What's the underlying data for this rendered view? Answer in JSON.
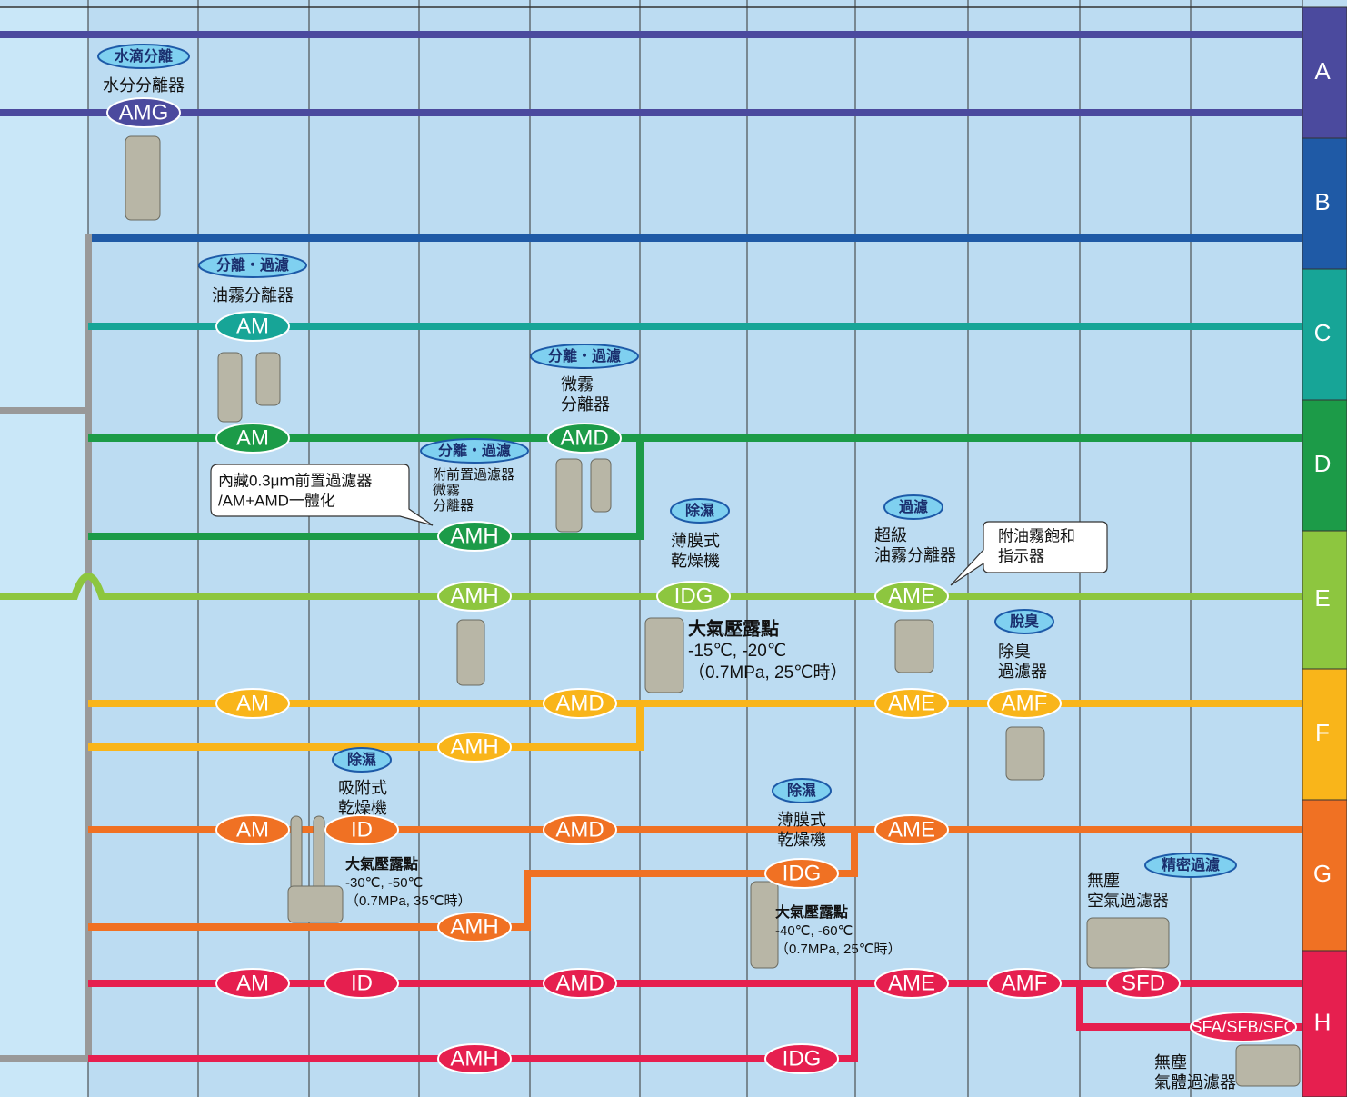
{
  "grades": [
    {
      "label": "A",
      "color": "#4b4a9e"
    },
    {
      "label": "B",
      "color": "#1f5aa6"
    },
    {
      "label": "C",
      "color": "#17a597"
    },
    {
      "label": "D",
      "color": "#1c9b48"
    },
    {
      "label": "E",
      "color": "#8dc63f"
    },
    {
      "label": "F",
      "color": "#f9b51a"
    },
    {
      "label": "G",
      "color": "#f07123"
    },
    {
      "label": "H",
      "color": "#e61f4f"
    }
  ],
  "nodes": [
    "AMG",
    "AM",
    "AM",
    "AMD",
    "AMH",
    "AMH",
    "IDG",
    "AME",
    "AM",
    "AMD",
    "AMH",
    "AME",
    "AMF",
    "AM",
    "ID",
    "AMD",
    "AMH",
    "IDG",
    "AME",
    "AM",
    "ID",
    "AMD",
    "AME",
    "AMF",
    "SFD",
    "SFA/SFB/SFC",
    "AMH",
    "IDG"
  ],
  "badges": [
    "水滴分離",
    "分離‧過濾",
    "分離‧過濾",
    "分離‧過濾",
    "除濕",
    "過濾",
    "脫臭",
    "除濕",
    "除濕",
    "精密過濾"
  ],
  "descriptions": [
    [
      "水分分離器"
    ],
    [
      "油霧分離器"
    ],
    [
      "微霧",
      "分離器"
    ],
    [
      "附前置過濾器",
      "微霧",
      "分離器"
    ],
    [
      "薄膜式",
      "乾燥機"
    ],
    [
      "超級",
      "油霧分離器"
    ],
    [
      "除臭",
      "過濾器"
    ],
    [
      "吸附式",
      "乾燥機"
    ],
    [
      "薄膜式",
      "乾燥機"
    ],
    [
      "無塵",
      "空氣過濾器"
    ],
    [
      "無塵",
      "氣體過濾器"
    ]
  ],
  "notes": [
    [
      "大氣壓露點",
      "-15℃, -20℃",
      "（0.7MPa, 25℃時）"
    ],
    [
      "大氣壓露點",
      "-30℃, -50℃",
      "（0.7MPa, 35℃時）"
    ],
    [
      "大氣壓露點",
      "-40℃, -60℃",
      "（0.7MPa, 25℃時）"
    ]
  ],
  "callouts": [
    [
      "內藏0.3μｍ前置過濾器",
      "/AM+AMD一體化"
    ],
    [
      "附油霧飽和",
      "指示器"
    ]
  ]
}
